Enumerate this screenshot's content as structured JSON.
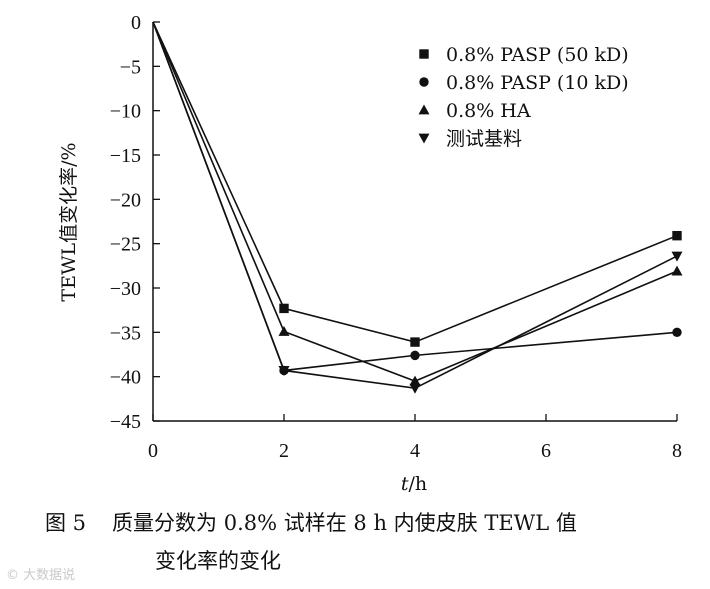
{
  "chart_data": {
    "type": "line",
    "xlabel_var": "t",
    "xlabel_unit": "/h",
    "ylabel": "TEWL值变化率/%",
    "xlim": [
      0,
      8
    ],
    "ylim": [
      -45,
      0
    ],
    "x_ticks": [
      0,
      2,
      4,
      6,
      8
    ],
    "y_ticks": [
      0,
      -5,
      -10,
      -15,
      -20,
      -25,
      -30,
      -35,
      -40,
      -45
    ],
    "x_tick_labels": [
      "0",
      "2",
      "4",
      "6",
      "8"
    ],
    "y_tick_labels": [
      "0",
      "−5",
      "−10",
      "−15",
      "−20",
      "−25",
      "−30",
      "−35",
      "−40",
      "−45"
    ],
    "grid": false,
    "legend_position": "top-right",
    "series": [
      {
        "name": "0.8% PASP (50 kD)",
        "marker": "square",
        "x": [
          0,
          2,
          4,
          8
        ],
        "y": [
          0,
          -32.3,
          -36.1,
          -24.1
        ]
      },
      {
        "name": "0.8% PASP (10 kD)",
        "marker": "circle",
        "x": [
          0,
          2,
          4,
          8
        ],
        "y": [
          0,
          -39.3,
          -37.6,
          -35.0
        ]
      },
      {
        "name": "0.8% HA",
        "marker": "triangle-up",
        "x": [
          0,
          2,
          4,
          8
        ],
        "y": [
          0,
          -34.9,
          -40.5,
          -28.1
        ]
      },
      {
        "name": "测试基料",
        "marker": "triangle-down",
        "x": [
          0,
          2,
          4,
          8
        ],
        "y": [
          0,
          -39.3,
          -41.3,
          -26.4
        ]
      }
    ]
  },
  "caption": {
    "figure_number": "图 5",
    "line1": "质量分数为 0.8% 试样在 8 h 内使皮肤 TEWL 值",
    "line2": "变化率的变化"
  },
  "watermark": "© 大数据说"
}
